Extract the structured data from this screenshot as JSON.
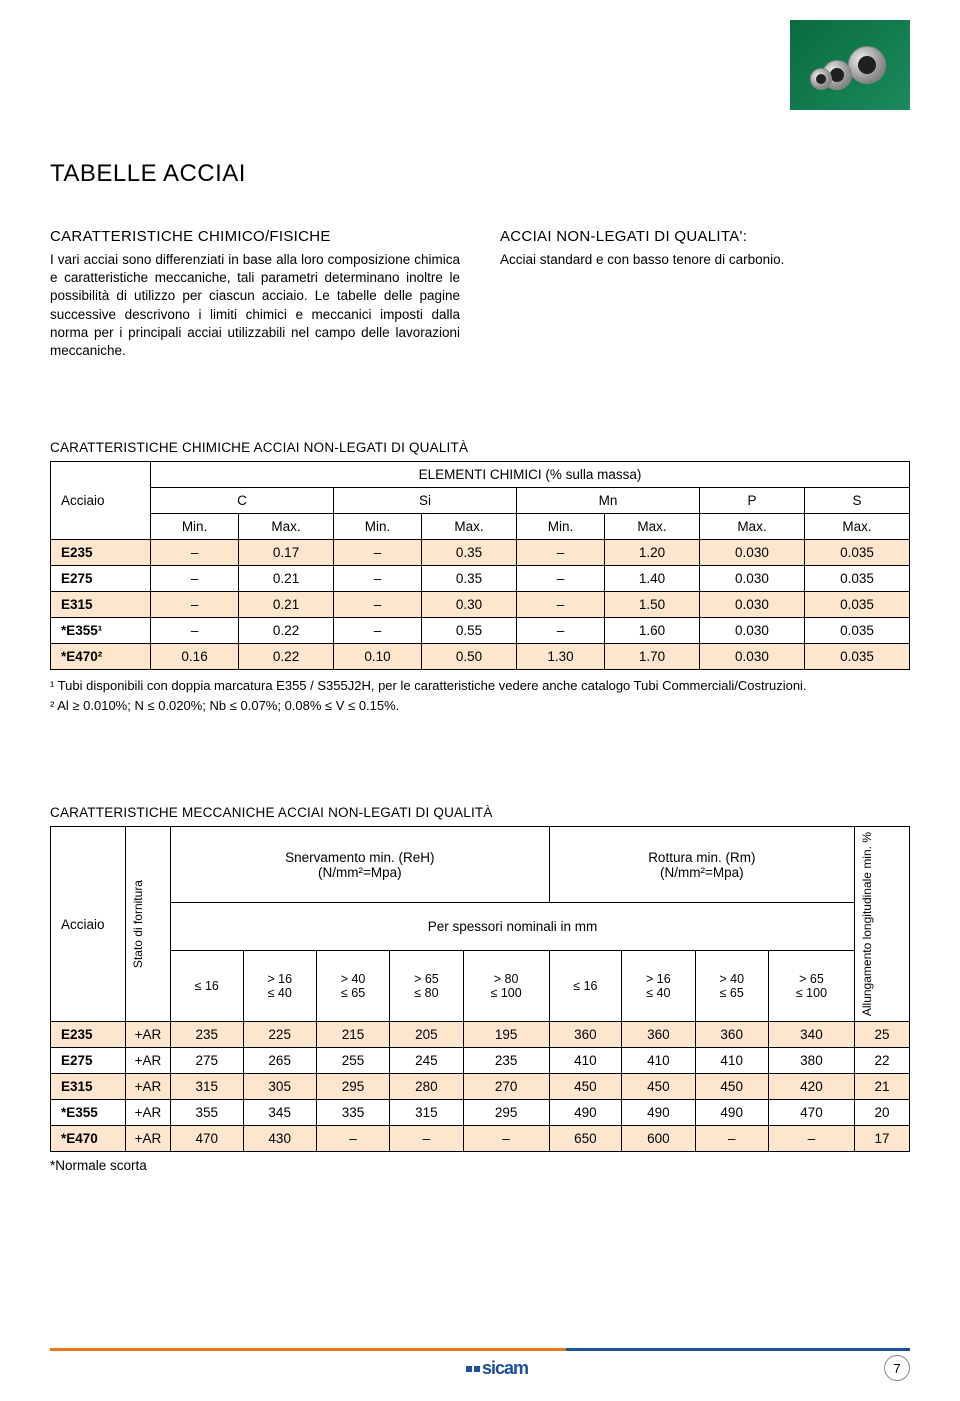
{
  "page_title": "TABELLE ACCIAI",
  "intro": {
    "heading": "CARATTERISTICHE CHIMICO/FISICHE",
    "body": "I vari acciai sono differenziati in base alla loro composizione chimica e caratteristiche meccaniche, tali parametri determinano inoltre le possibilità di utilizzo per ciascun acciaio.\nLe tabelle delle pagine successive descrivono i limiti chimici e meccanici imposti dalla norma per i principali acciai utilizzabili nel campo delle lavorazioni meccaniche."
  },
  "right_col": {
    "heading": "ACCIAI NON-LEGATI DI QUALITA':",
    "body": "Acciai standard e con basso tenore di carbonio."
  },
  "chem_table": {
    "title": "CARATTERISTICHE CHIMICHE ACCIAI NON-LEGATI DI QUALITÀ",
    "super_header": "ELEMENTI CHIMICI (% sulla massa)",
    "col_steel": "Acciaio",
    "groups": [
      "C",
      "Si",
      "Mn",
      "P",
      "S"
    ],
    "subheads": [
      "Min.",
      "Max.",
      "Min.",
      "Max.",
      "Min.",
      "Max.",
      "Max.",
      "Max."
    ],
    "rows": [
      {
        "name": "E235",
        "vals": [
          "–",
          "0.17",
          "–",
          "0.35",
          "–",
          "1.20",
          "0.030",
          "0.035"
        ]
      },
      {
        "name": "E275",
        "vals": [
          "–",
          "0.21",
          "–",
          "0.35",
          "–",
          "1.40",
          "0.030",
          "0.035"
        ]
      },
      {
        "name": "E315",
        "vals": [
          "–",
          "0.21",
          "–",
          "0.30",
          "–",
          "1.50",
          "0.030",
          "0.035"
        ]
      },
      {
        "name": "*E355¹",
        "vals": [
          "–",
          "0.22",
          "–",
          "0.55",
          "–",
          "1.60",
          "0.030",
          "0.035"
        ]
      },
      {
        "name": "*E470²",
        "vals": [
          "0.16",
          "0.22",
          "0.10",
          "0.50",
          "1.30",
          "1.70",
          "0.030",
          "0.035"
        ]
      }
    ],
    "note1": "¹ Tubi disponibili con doppia marcatura E355 / S355J2H, per le caratteristiche vedere anche catalogo Tubi Commerciali/Costruzioni.",
    "note2": "² Al ≥ 0.010%; N ≤ 0.020%; Nb ≤ 0.07%; 0.08% ≤ V ≤ 0.15%."
  },
  "mech_table": {
    "title": "CARATTERISTICHE MECCANICHE ACCIAI NON-LEGATI DI QUALITÀ",
    "col_steel": "Acciaio",
    "col_state": "Stato di fornitura",
    "yield_header": "Snervamento min. (ReH)\n(N/mm²=Mpa)",
    "tensile_header": "Rottura min. (Rm)\n(N/mm²=Mpa)",
    "thickness_header": "Per spessori nominali in mm",
    "elong_header": "Allungamento longitudinale min. %",
    "thickness_cols_yield": [
      "≤ 16",
      "> 16\n≤ 40",
      "> 40\n≤ 65",
      "> 65\n≤ 80",
      "> 80\n≤ 100"
    ],
    "thickness_cols_tensile": [
      "≤ 16",
      "> 16\n≤ 40",
      "> 40\n≤ 65",
      "> 65\n≤ 100"
    ],
    "rows": [
      {
        "name": "E235",
        "state": "+AR",
        "vals": [
          "235",
          "225",
          "215",
          "205",
          "195",
          "360",
          "360",
          "360",
          "340",
          "25"
        ]
      },
      {
        "name": "E275",
        "state": "+AR",
        "vals": [
          "275",
          "265",
          "255",
          "245",
          "235",
          "410",
          "410",
          "410",
          "380",
          "22"
        ]
      },
      {
        "name": "E315",
        "state": "+AR",
        "vals": [
          "315",
          "305",
          "295",
          "280",
          "270",
          "450",
          "450",
          "450",
          "420",
          "21"
        ]
      },
      {
        "name": "*E355",
        "state": "+AR",
        "vals": [
          "355",
          "345",
          "335",
          "315",
          "295",
          "490",
          "490",
          "490",
          "470",
          "20"
        ]
      },
      {
        "name": "*E470",
        "state": "+AR",
        "vals": [
          "470",
          "430",
          "–",
          "–",
          "–",
          "650",
          "600",
          "–",
          "–",
          "17"
        ]
      }
    ],
    "footnote": "*Normale scorta"
  },
  "footer": {
    "logo": "sicam",
    "page_number": "7"
  },
  "colors": {
    "row_alt_bg": "#fde5ce",
    "orange_bar": "#e87722",
    "blue_bar": "#1a4f9c",
    "image_bg": "#0a6b3e"
  }
}
